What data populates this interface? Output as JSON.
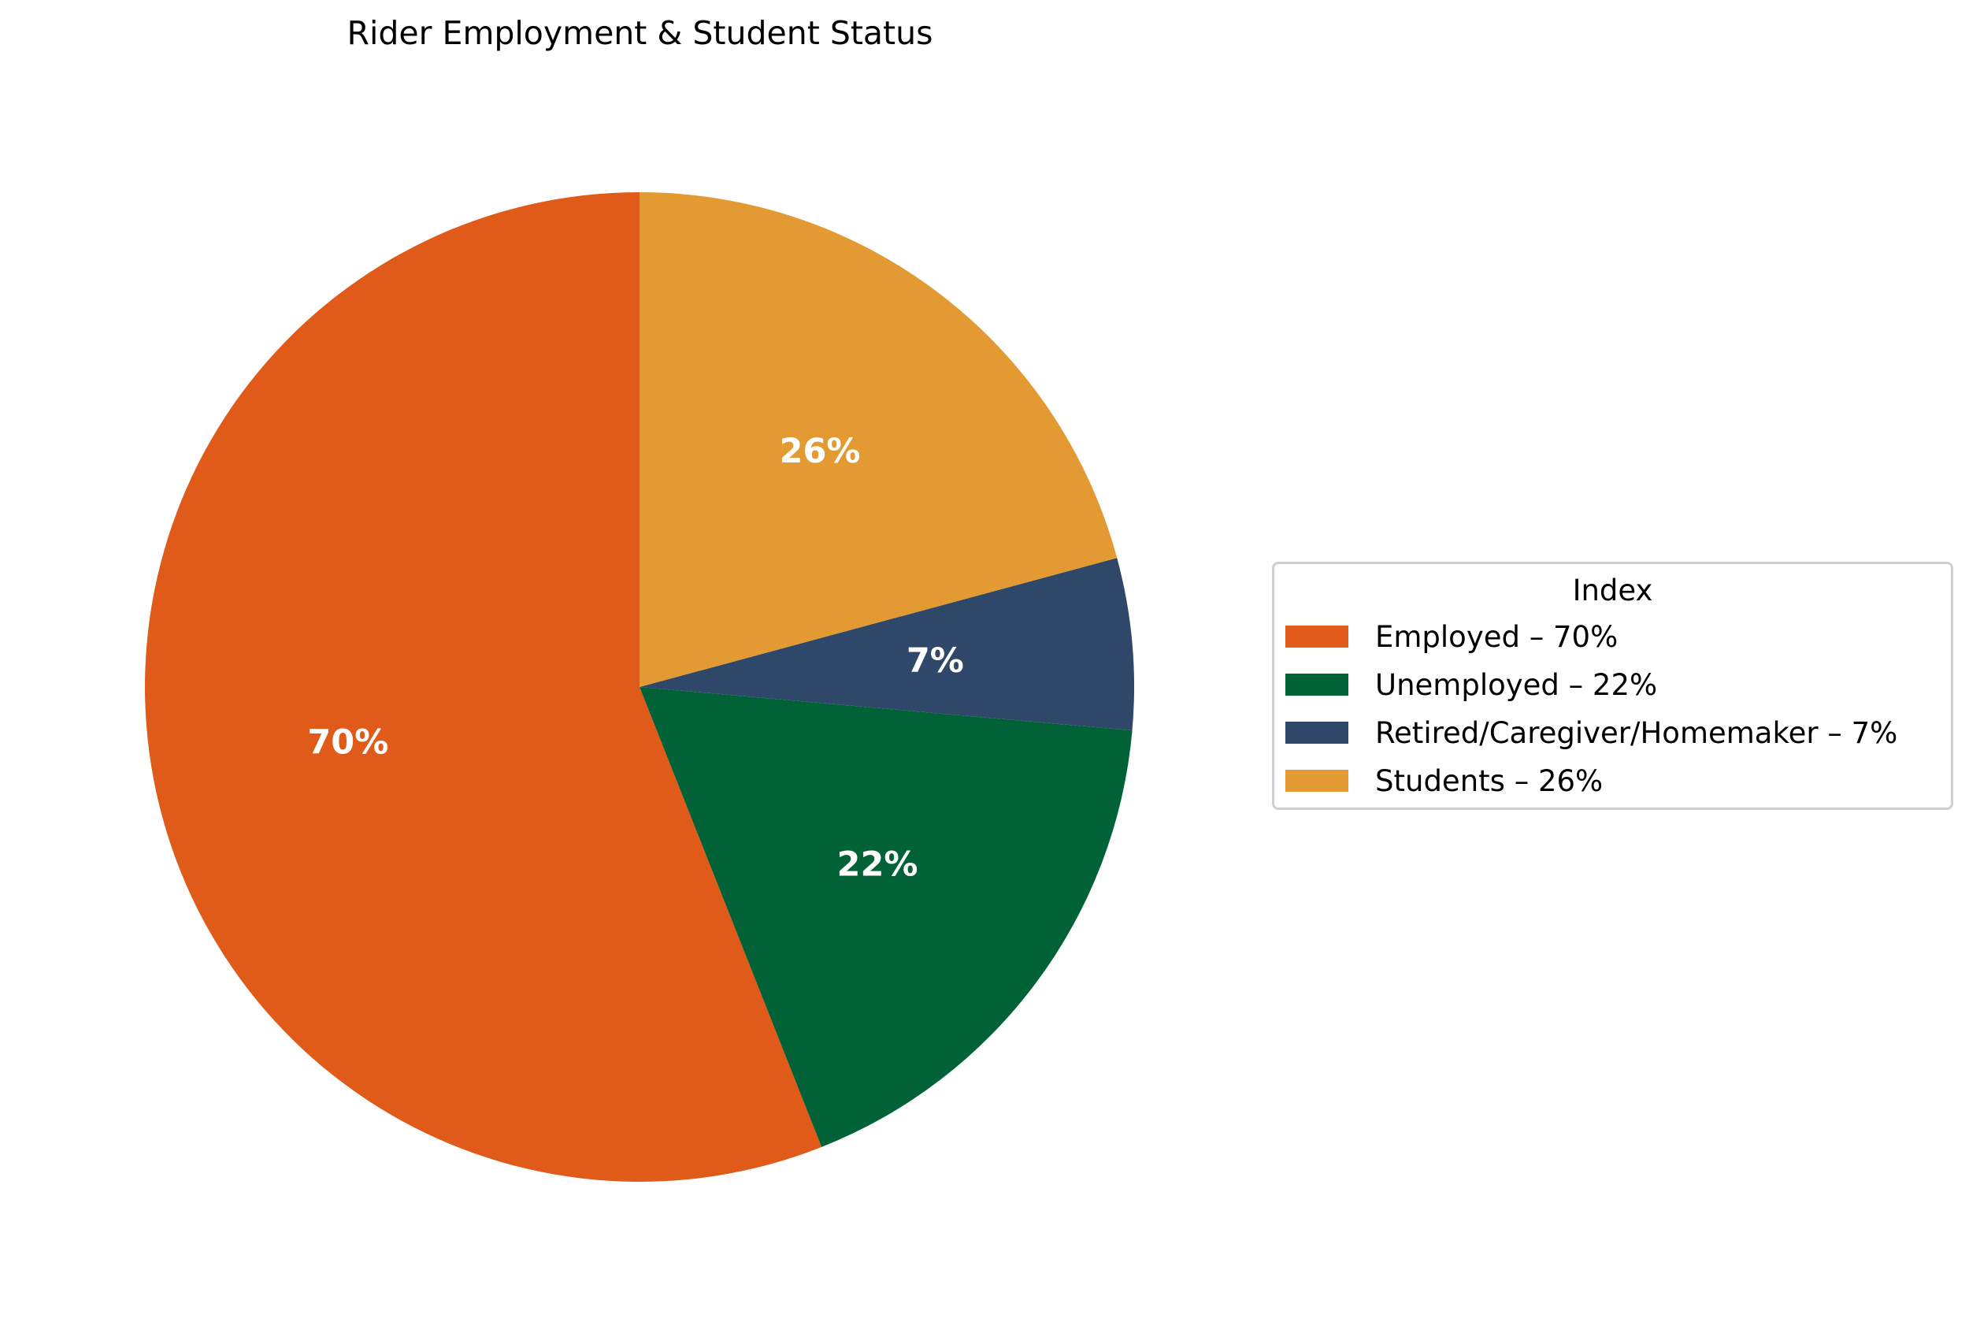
{
  "chart_data": {
    "type": "pie",
    "title": "Rider Employment & Student Status",
    "legend_title": "Index",
    "legend_position": "right",
    "start_angle_deg": 90,
    "direction": "counterclockwise",
    "slices": [
      {
        "label": "Employed",
        "value": 70,
        "pct_label": "70%",
        "legend": "Employed – 70%",
        "color": "#E05A19"
      },
      {
        "label": "Unemployed",
        "value": 22,
        "pct_label": "22%",
        "legend": "Unemployed – 22%",
        "color": "#006236"
      },
      {
        "label": "Retired/Caregiver/Homemaker",
        "value": 7,
        "pct_label": "7%",
        "legend": "Retired/Caregiver/Homemaker – 7%",
        "color": "#2F4869"
      },
      {
        "label": "Students",
        "value": 26,
        "pct_label": "26%",
        "legend": "Students – 26%",
        "color": "#E39A33"
      }
    ]
  }
}
